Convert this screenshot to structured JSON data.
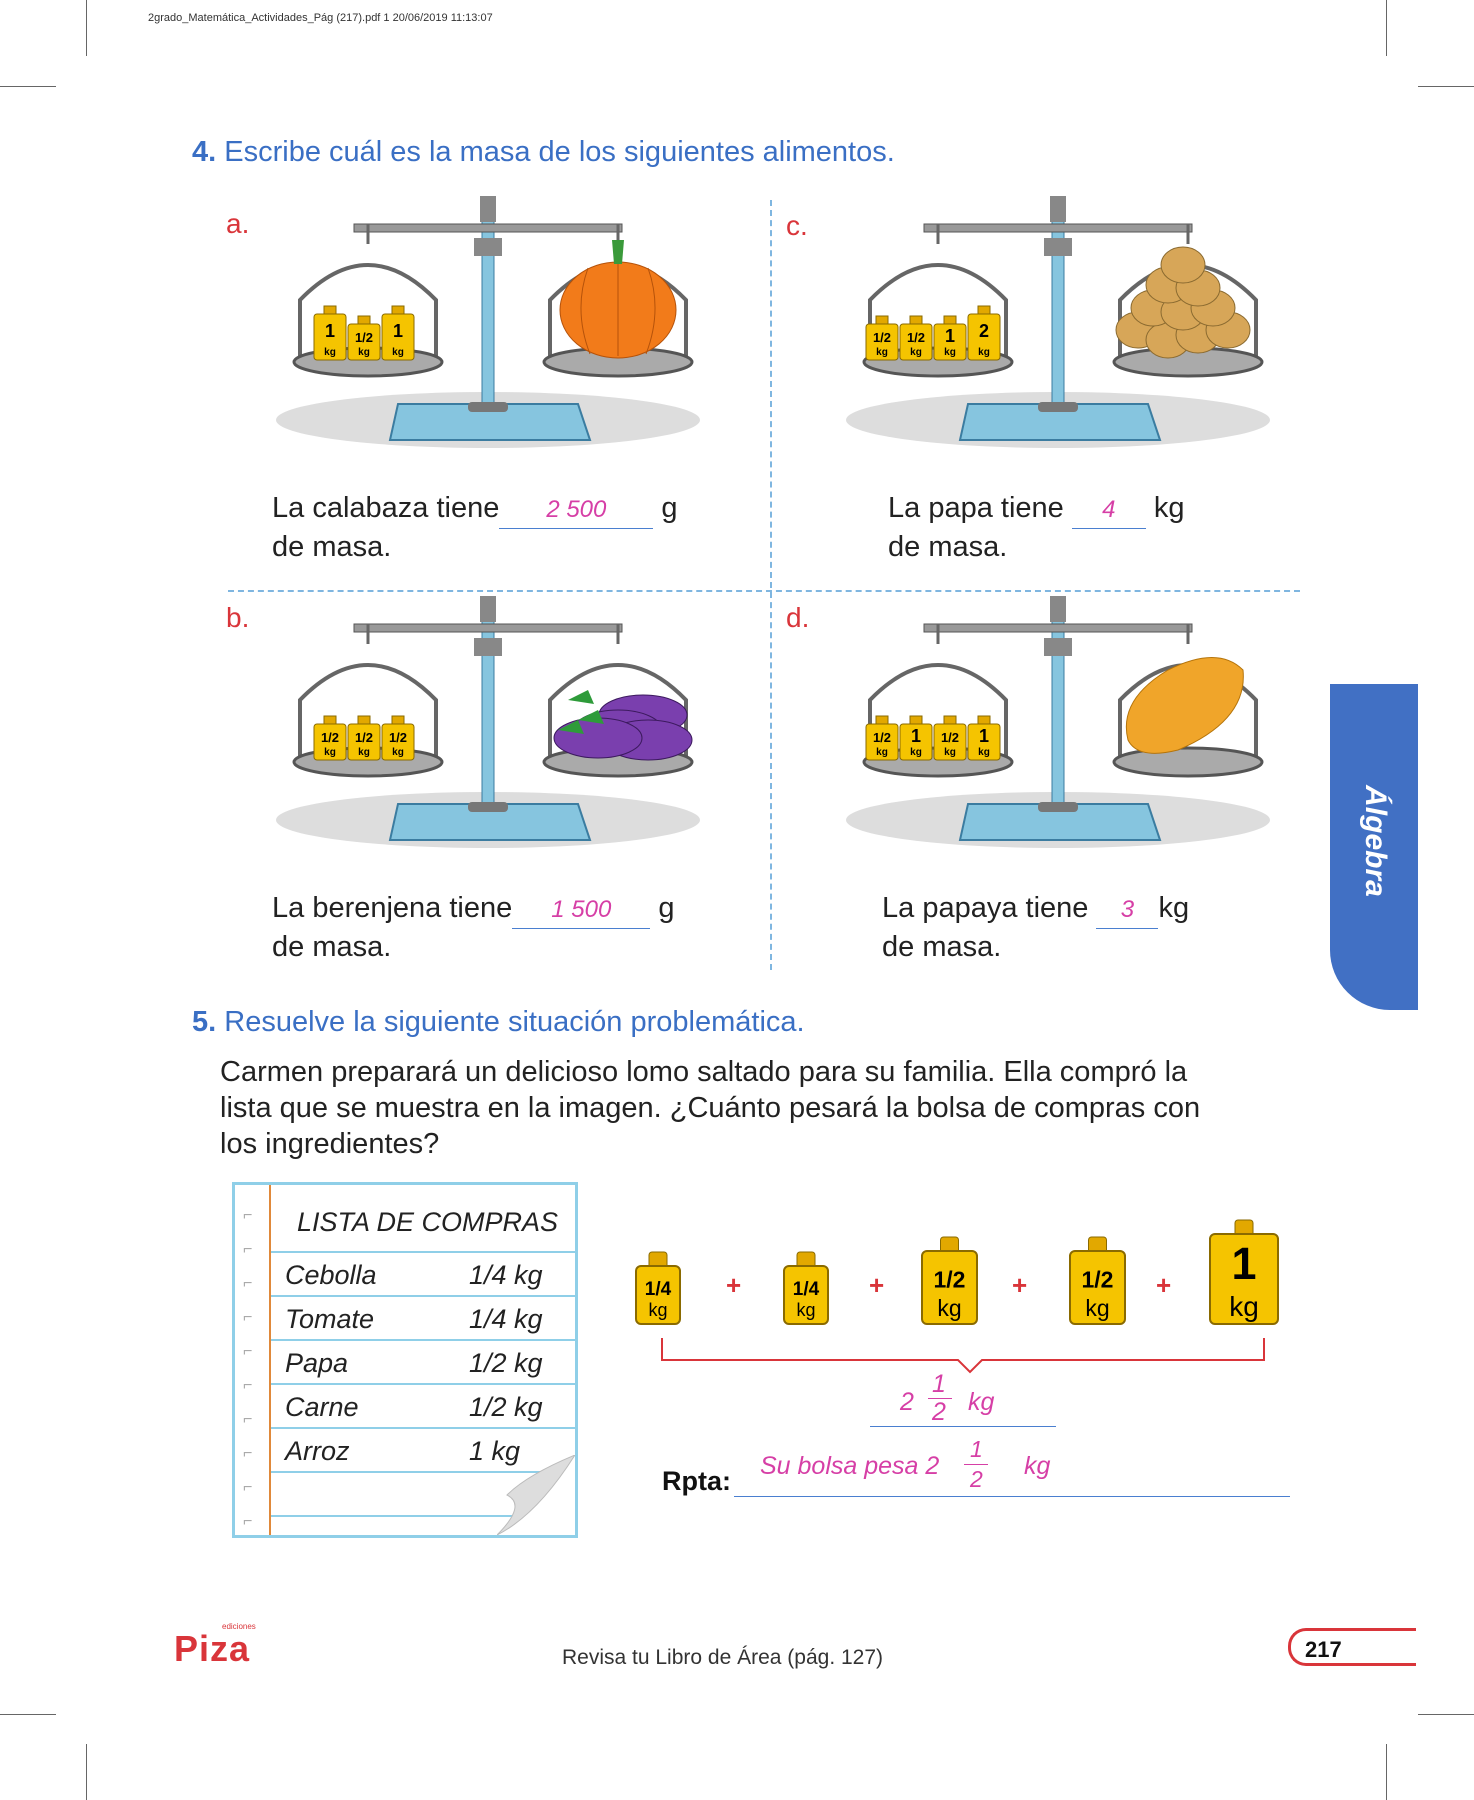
{
  "file_header": "2grado_Matemática_Actividades_Pág (217).pdf   1   20/06/2019   11:13:07",
  "q4": {
    "number": "4.",
    "title": "Escribe cuál es la masa de los siguientes alimentos.",
    "items": [
      {
        "letter": "a.",
        "before": "La calabaza tiene",
        "answer": "2 500",
        "unit": "g",
        "after": "de masa.",
        "weights": [
          "1|kg",
          "1/2|kg",
          "1|kg"
        ]
      },
      {
        "letter": "c.",
        "before": "La papa tiene",
        "answer": "4",
        "unit": "kg",
        "after": "de masa.",
        "weights": [
          "1/2|kg",
          "1/2|kg",
          "1|kg",
          "2|kg"
        ]
      },
      {
        "letter": "b.",
        "before": "La berenjena tiene",
        "answer": "1 500",
        "unit": "g",
        "after": "de masa.",
        "weights": [
          "1/2|kg",
          "1/2|kg",
          "1/2|kg"
        ]
      },
      {
        "letter": "d.",
        "before": "La papaya tiene",
        "answer": "3",
        "unit": "kg",
        "after": "de masa.",
        "weights": [
          "1/2|kg",
          "1|kg",
          "1/2|kg",
          "1|kg"
        ]
      }
    ]
  },
  "q5": {
    "number": "5.",
    "title": "Resuelve la siguiente situación problemática.",
    "text": [
      "Carmen preparará un delicioso lomo saltado para su familia. Ella compró la",
      "lista que se muestra en la imagen. ¿Cuánto pesará la bolsa de compras con",
      "los ingredientes?"
    ],
    "list_title": "LISTA DE COMPRAS",
    "list": [
      {
        "item": "Cebolla",
        "qty": "1/4 kg"
      },
      {
        "item": "Tomate",
        "qty": "1/4 kg"
      },
      {
        "item": "Papa",
        "qty": "1/2 kg"
      },
      {
        "item": "Carne",
        "qty": "1/2 kg"
      },
      {
        "item": "Arroz",
        "qty": "1 kg"
      }
    ],
    "weights": [
      {
        "value": "1/4",
        "unit": "kg"
      },
      {
        "value": "1/4",
        "unit": "kg"
      },
      {
        "value": "1/2",
        "unit": "kg"
      },
      {
        "value": "1/2",
        "unit": "kg"
      },
      {
        "value": "1",
        "unit": "kg"
      }
    ],
    "plus": "+",
    "sum": {
      "whole": "2",
      "num": "1",
      "den": "2",
      "unit": "kg"
    },
    "rpta_label": "Rpta:",
    "rpta_answer": {
      "text": "Su bolsa pesa 2",
      "num": "1",
      "den": "2",
      "unit": "kg"
    }
  },
  "side_tab": "Álgebra",
  "footer": {
    "logo": "Piza",
    "logo_small": "ediciones",
    "review": "Revisa tu Libro de Área (pág. 127)",
    "page": "217"
  },
  "colors": {
    "blue": "#3a6fc4",
    "red": "#d9353a",
    "pink": "#d63fa6",
    "gold": "#f5c400"
  }
}
